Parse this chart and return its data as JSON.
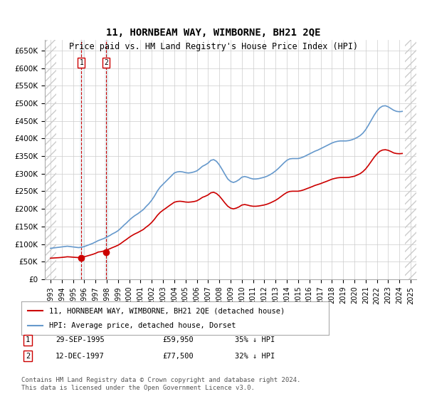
{
  "title": "11, HORNBEAM WAY, WIMBORNE, BH21 2QE",
  "subtitle": "Price paid vs. HM Land Registry's House Price Index (HPI)",
  "ylabel": "",
  "bg_color": "#ffffff",
  "hatch_color": "#cccccc",
  "grid_color": "#cccccc",
  "plot_bg": "#ffffff",
  "red_line_color": "#cc0000",
  "blue_line_color": "#6699cc",
  "marker_color": "#cc0000",
  "sale1_year": 1995.747,
  "sale1_price": 59950,
  "sale2_year": 1997.947,
  "sale2_price": 77500,
  "sale1_label": "1",
  "sale2_label": "2",
  "legend_line1": "11, HORNBEAM WAY, WIMBORNE, BH21 2QE (detached house)",
  "legend_line2": "HPI: Average price, detached house, Dorset",
  "table_row1": "1    29-SEP-1995    £59,950    35% ↓ HPI",
  "table_row2": "2    12-DEC-1997    £77,500    32% ↓ HPI",
  "footnote": "Contains HM Land Registry data © Crown copyright and database right 2024.\nThis data is licensed under the Open Government Licence v3.0.",
  "xlim": [
    1992.5,
    2025.5
  ],
  "ylim": [
    0,
    680000
  ],
  "yticks": [
    0,
    50000,
    100000,
    150000,
    200000,
    250000,
    300000,
    350000,
    400000,
    450000,
    500000,
    550000,
    600000,
    650000
  ],
  "ytick_labels": [
    "£0",
    "£50K",
    "£100K",
    "£150K",
    "£200K",
    "£250K",
    "£300K",
    "£350K",
    "£400K",
    "£450K",
    "£500K",
    "£550K",
    "£600K",
    "£650K"
  ],
  "xticks": [
    1993,
    1994,
    1995,
    1996,
    1997,
    1998,
    1999,
    2000,
    2001,
    2002,
    2003,
    2004,
    2005,
    2006,
    2007,
    2008,
    2009,
    2010,
    2011,
    2012,
    2013,
    2014,
    2015,
    2016,
    2017,
    2018,
    2019,
    2020,
    2021,
    2022,
    2023,
    2024,
    2025
  ],
  "hpi_x": [
    1993,
    1993.25,
    1993.5,
    1993.75,
    1994,
    1994.25,
    1994.5,
    1994.75,
    1995,
    1995.25,
    1995.5,
    1995.75,
    1996,
    1996.25,
    1996.5,
    1996.75,
    1997,
    1997.25,
    1997.5,
    1997.75,
    1998,
    1998.25,
    1998.5,
    1998.75,
    1999,
    1999.25,
    1999.5,
    1999.75,
    2000,
    2000.25,
    2000.5,
    2000.75,
    2001,
    2001.25,
    2001.5,
    2001.75,
    2002,
    2002.25,
    2002.5,
    2002.75,
    2003,
    2003.25,
    2003.5,
    2003.75,
    2004,
    2004.25,
    2004.5,
    2004.75,
    2005,
    2005.25,
    2005.5,
    2005.75,
    2006,
    2006.25,
    2006.5,
    2006.75,
    2007,
    2007.25,
    2007.5,
    2007.75,
    2008,
    2008.25,
    2008.5,
    2008.75,
    2009,
    2009.25,
    2009.5,
    2009.75,
    2010,
    2010.25,
    2010.5,
    2010.75,
    2011,
    2011.25,
    2011.5,
    2011.75,
    2012,
    2012.25,
    2012.5,
    2012.75,
    2013,
    2013.25,
    2013.5,
    2013.75,
    2014,
    2014.25,
    2014.5,
    2014.75,
    2015,
    2015.25,
    2015.5,
    2015.75,
    2016,
    2016.25,
    2016.5,
    2016.75,
    2017,
    2017.25,
    2017.5,
    2017.75,
    2018,
    2018.25,
    2018.5,
    2018.75,
    2019,
    2019.25,
    2019.5,
    2019.75,
    2020,
    2020.25,
    2020.5,
    2020.75,
    2021,
    2021.25,
    2021.5,
    2021.75,
    2022,
    2022.25,
    2022.5,
    2022.75,
    2023,
    2023.25,
    2023.5,
    2023.75,
    2024,
    2024.25
  ],
  "hpi_y": [
    88000,
    89000,
    90000,
    91000,
    92000,
    93000,
    94000,
    93000,
    92000,
    91000,
    90000,
    91000,
    93000,
    96000,
    99000,
    102000,
    106000,
    110000,
    113000,
    116000,
    120000,
    124000,
    129000,
    133000,
    138000,
    145000,
    153000,
    160000,
    168000,
    175000,
    181000,
    186000,
    192000,
    198000,
    207000,
    215000,
    225000,
    237000,
    251000,
    262000,
    270000,
    278000,
    286000,
    294000,
    302000,
    305000,
    306000,
    305000,
    303000,
    302000,
    303000,
    305000,
    308000,
    314000,
    321000,
    325000,
    330000,
    338000,
    340000,
    335000,
    325000,
    312000,
    298000,
    285000,
    278000,
    275000,
    278000,
    283000,
    290000,
    292000,
    290000,
    287000,
    285000,
    285000,
    286000,
    288000,
    290000,
    293000,
    297000,
    302000,
    308000,
    315000,
    323000,
    331000,
    338000,
    342000,
    343000,
    343000,
    343000,
    345000,
    348000,
    352000,
    356000,
    360000,
    364000,
    367000,
    371000,
    375000,
    379000,
    383000,
    387000,
    390000,
    392000,
    393000,
    393000,
    393000,
    394000,
    396000,
    399000,
    403000,
    408000,
    415000,
    425000,
    438000,
    452000,
    466000,
    478000,
    487000,
    492000,
    493000,
    490000,
    485000,
    480000,
    477000,
    476000,
    477000
  ],
  "red_x": [
    1993,
    1993.25,
    1993.5,
    1993.75,
    1994,
    1994.25,
    1994.5,
    1994.75,
    1995,
    1995.25,
    1995.5,
    1995.75,
    1996,
    1996.25,
    1996.5,
    1996.75,
    1997,
    1997.25,
    1997.5,
    1997.75,
    1998,
    1998.25,
    1998.5,
    1998.75,
    1999,
    1999.25,
    1999.5,
    1999.75,
    2000,
    2000.25,
    2000.5,
    2000.75,
    2001,
    2001.25,
    2001.5,
    2001.75,
    2002,
    2002.25,
    2002.5,
    2002.75,
    2003,
    2003.25,
    2003.5,
    2003.75,
    2004,
    2004.25,
    2004.5,
    2004.75,
    2005,
    2005.25,
    2005.5,
    2005.75,
    2006,
    2006.25,
    2006.5,
    2006.75,
    2007,
    2007.25,
    2007.5,
    2007.75,
    2008,
    2008.25,
    2008.5,
    2008.75,
    2009,
    2009.25,
    2009.5,
    2009.75,
    2010,
    2010.25,
    2010.5,
    2010.75,
    2011,
    2011.25,
    2011.5,
    2011.75,
    2012,
    2012.25,
    2012.5,
    2012.75,
    2013,
    2013.25,
    2013.5,
    2013.75,
    2014,
    2014.25,
    2014.5,
    2014.75,
    2015,
    2015.25,
    2015.5,
    2015.75,
    2016,
    2016.25,
    2016.5,
    2016.75,
    2017,
    2017.25,
    2017.5,
    2017.75,
    2018,
    2018.25,
    2018.5,
    2018.75,
    2019,
    2019.25,
    2019.5,
    2019.75,
    2020,
    2020.25,
    2020.5,
    2020.75,
    2021,
    2021.25,
    2021.5,
    2021.75,
    2022,
    2022.25,
    2022.5,
    2022.75,
    2023,
    2023.25,
    2023.5,
    2023.75,
    2024,
    2024.25
  ],
  "red_y": [
    59950,
    60500,
    61000,
    61500,
    62200,
    63000,
    64000,
    63500,
    62800,
    62200,
    61800,
    62500,
    64000,
    66200,
    68500,
    70800,
    73700,
    77500,
    78500,
    80500,
    83300,
    86500,
    90000,
    93200,
    96800,
    101800,
    107800,
    113300,
    119300,
    124500,
    129000,
    132700,
    137100,
    141600,
    148200,
    154200,
    161800,
    171100,
    181800,
    190200,
    196300,
    201900,
    207800,
    213400,
    218900,
    221000,
    221700,
    220900,
    219500,
    219000,
    219700,
    220800,
    222900,
    227400,
    232800,
    235800,
    239700,
    245700,
    247200,
    243600,
    236600,
    226900,
    216700,
    207600,
    202200,
    200000,
    202200,
    205700,
    210900,
    212400,
    210800,
    208700,
    207500,
    207500,
    208300,
    209700,
    211200,
    213500,
    216600,
    220400,
    224400,
    229600,
    235600,
    241500,
    246600,
    249500,
    250200,
    250200,
    250200,
    251700,
    254100,
    257200,
    260200,
    263300,
    266700,
    269200,
    271800,
    275000,
    277900,
    281100,
    284400,
    286500,
    288200,
    289000,
    289100,
    289200,
    289500,
    291100,
    292800,
    296200,
    299900,
    305700,
    313500,
    323800,
    335100,
    346500,
    356100,
    363600,
    367200,
    368100,
    366400,
    362900,
    358900,
    357200,
    356700,
    357400
  ],
  "vline1_x": 1995.747,
  "vline2_x": 1997.947,
  "shade_left_end": 1993.0,
  "shade_right_start": 2024.5
}
